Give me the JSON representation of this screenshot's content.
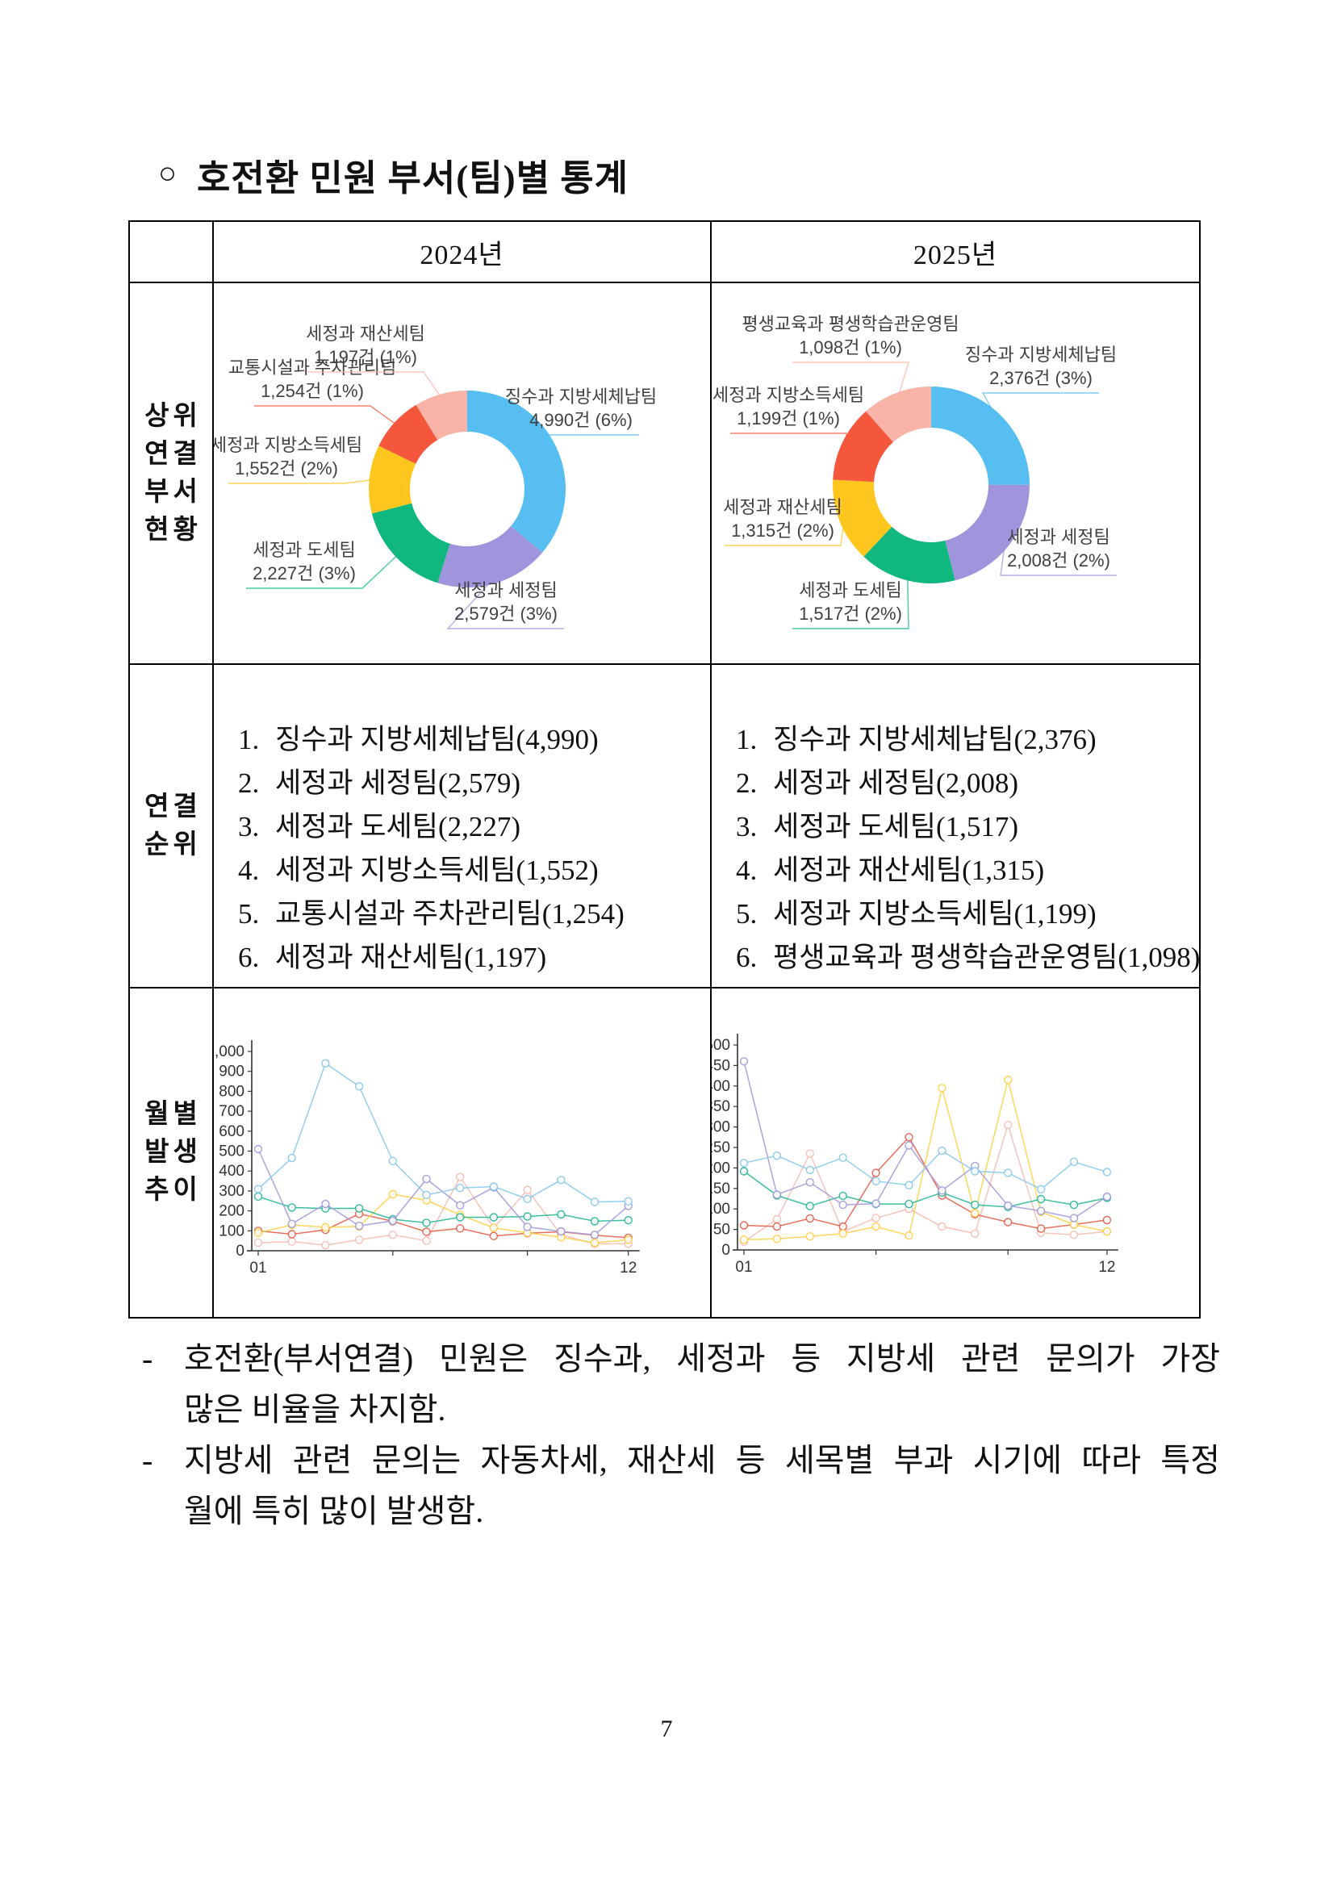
{
  "page": {
    "bullet_symbol": "○",
    "title": "호전환 민원 부서(팀)별 통계",
    "page_number": "7"
  },
  "table": {
    "col_headers": [
      "2024년",
      "2025년"
    ],
    "row_headers": [
      {
        "lines": [
          "상위",
          "연결",
          "부서",
          "현황"
        ]
      },
      {
        "lines": [
          "연결",
          "순위"
        ]
      },
      {
        "lines": [
          "월별",
          "발생",
          "추이"
        ]
      }
    ]
  },
  "rank_lists": {
    "y2024": [
      {
        "num": "1.",
        "text": "징수과 지방세체납팀(4,990)"
      },
      {
        "num": "2.",
        "text": "세정과 세정팀(2,579)"
      },
      {
        "num": "3.",
        "text": "세정과 도세팀(2,227)"
      },
      {
        "num": "4.",
        "text": "세정과 지방소득세팀(1,552)"
      },
      {
        "num": "5.",
        "text": "교통시설과 주차관리팀(1,254)"
      },
      {
        "num": "6.",
        "text": "세정과 재산세팀(1,197)"
      }
    ],
    "y2025": [
      {
        "num": "1.",
        "text": "징수과 지방세체납팀(2,376)"
      },
      {
        "num": "2.",
        "text": "세정과 세정팀(2,008)"
      },
      {
        "num": "3.",
        "text": "세정과 도세팀(1,517)"
      },
      {
        "num": "4.",
        "text": "세정과 재산세팀(1,315)"
      },
      {
        "num": "5.",
        "text": "세정과 지방소득세팀(1,199)"
      },
      {
        "num": "6.",
        "text": "평생교육과 평생학습관운영팀(1,098)"
      }
    ]
  },
  "bullets": [
    {
      "marker": "-",
      "lines": [
        "호전환(부서연결) 민원은 징수과, 세정과 등 지방세 관련 문의가 가장",
        "많은 비율을 차지함."
      ]
    },
    {
      "marker": "-",
      "lines": [
        "지방세 관련 문의는 자동차세, 재산세 등 세목별 부과 시기에 따라 특정",
        "월에 특히 많이 발생함."
      ]
    }
  ],
  "chart_data": [
    {
      "id": "donut2024",
      "type": "pie",
      "year": "2024년",
      "legend_position": "callout-labels",
      "slices": [
        {
          "label": "징수과 지방세체납팀",
          "value": 4990,
          "display": "4,990건 (6%)",
          "color": "#56bef0"
        },
        {
          "label": "세정과 세정팀",
          "value": 2579,
          "display": "2,579건 (3%)",
          "color": "#a094dd"
        },
        {
          "label": "세정과 도세팀",
          "value": 2227,
          "display": "2,227건 (3%)",
          "color": "#10b77e"
        },
        {
          "label": "세정과 지방소득세팀",
          "value": 1552,
          "display": "1,552건 (2%)",
          "color": "#ffc61e"
        },
        {
          "label": "교통시설과 주차관리팀",
          "value": 1254,
          "display": "1,254건 (1%)",
          "color": "#f4573c"
        },
        {
          "label": "세정과 재산세팀",
          "value": 1197,
          "display": "1,197건 (1%)",
          "color": "#f9b3a7"
        }
      ]
    },
    {
      "id": "donut2025",
      "type": "pie",
      "year": "2025년",
      "legend_position": "callout-labels",
      "slices": [
        {
          "label": "징수과 지방세체납팀",
          "value": 2376,
          "display": "2,376건 (3%)",
          "color": "#56bef0"
        },
        {
          "label": "세정과 세정팀",
          "value": 2008,
          "display": "2,008건 (2%)",
          "color": "#a094dd"
        },
        {
          "label": "세정과 도세팀",
          "value": 1517,
          "display": "1,517건 (2%)",
          "color": "#10b77e"
        },
        {
          "label": "세정과 재산세팀",
          "value": 1315,
          "display": "1,315건 (2%)",
          "color": "#ffc61e"
        },
        {
          "label": "세정과 지방소득세팀",
          "value": 1199,
          "display": "1,199건 (1%)",
          "color": "#f4573c"
        },
        {
          "label": "평생교육과 평생학습관운영팀",
          "value": 1098,
          "display": "1,098건 (1%)",
          "color": "#f9b3a7"
        }
      ]
    },
    {
      "id": "line2024",
      "type": "line",
      "year": "2024년",
      "x": [
        1,
        2,
        3,
        4,
        5,
        6,
        7,
        8,
        9,
        10,
        11,
        12
      ],
      "x_tick_labels_shown": [
        "01",
        "12"
      ],
      "ylim": [
        0,
        1000
      ],
      "ytick": 100,
      "grid": false,
      "series": [
        {
          "name": "세정과 재산세팀",
          "color": "#f6bdb4",
          "values": [
            40,
            46,
            28,
            55,
            80,
            50,
            370,
            115,
            305,
            80,
            35,
            35
          ]
        },
        {
          "name": "교통시설과 주차관리팀",
          "color": "#e4604e",
          "values": [
            100,
            83,
            105,
            185,
            148,
            95,
            112,
            74,
            88,
            95,
            78,
            65
          ]
        },
        {
          "name": "세정과 지방소득세팀",
          "color": "#ffd04a",
          "values": [
            90,
            130,
            118,
            122,
            284,
            253,
            180,
            115,
            90,
            68,
            40,
            55
          ]
        },
        {
          "name": "세정과 도세팀",
          "color": "#28b795",
          "values": [
            272,
            217,
            212,
            213,
            158,
            140,
            168,
            168,
            172,
            182,
            148,
            153
          ]
        },
        {
          "name": "세정과 세정팀",
          "color": "#a39ade",
          "values": [
            510,
            135,
            235,
            125,
            150,
            360,
            228,
            318,
            120,
            97,
            80,
            225
          ]
        },
        {
          "name": "징수과 지방세체납팀",
          "color": "#86c9ed",
          "values": [
            310,
            465,
            940,
            825,
            450,
            280,
            315,
            322,
            260,
            355,
            245,
            248
          ]
        }
      ]
    },
    {
      "id": "line2025",
      "type": "line",
      "year": "2025년",
      "x": [
        1,
        2,
        3,
        4,
        5,
        6,
        7,
        8,
        9,
        10,
        11,
        12
      ],
      "x_tick_labels_shown": [
        "01",
        "12"
      ],
      "ylim": [
        0,
        500
      ],
      "ytick": 50,
      "grid": false,
      "series": [
        {
          "name": "평생교육과 평생학습관운영팀",
          "color": "#f6bdb4",
          "values": [
            20,
            75,
            235,
            45,
            78,
            100,
            57,
            40,
            305,
            42,
            37,
            45
          ]
        },
        {
          "name": "세정과 지방소득세팀",
          "color": "#e4604e",
          "values": [
            60,
            57,
            77,
            57,
            188,
            275,
            133,
            87,
            68,
            52,
            62,
            73
          ]
        },
        {
          "name": "세정과 재산세팀",
          "color": "#ffd04a",
          "values": [
            25,
            27,
            33,
            40,
            57,
            35,
            395,
            90,
            415,
            93,
            62,
            45
          ]
        },
        {
          "name": "세정과 도세팀",
          "color": "#28b795",
          "values": [
            192,
            133,
            107,
            132,
            112,
            112,
            140,
            110,
            105,
            124,
            110,
            127
          ]
        },
        {
          "name": "세정과 세정팀",
          "color": "#a39ade",
          "values": [
            460,
            135,
            165,
            110,
            113,
            255,
            145,
            205,
            108,
            95,
            78,
            130
          ]
        },
        {
          "name": "징수과 지방세체납팀",
          "color": "#86c9ed",
          "values": [
            212,
            230,
            195,
            225,
            168,
            158,
            242,
            192,
            188,
            148,
            215,
            190
          ]
        }
      ]
    }
  ]
}
